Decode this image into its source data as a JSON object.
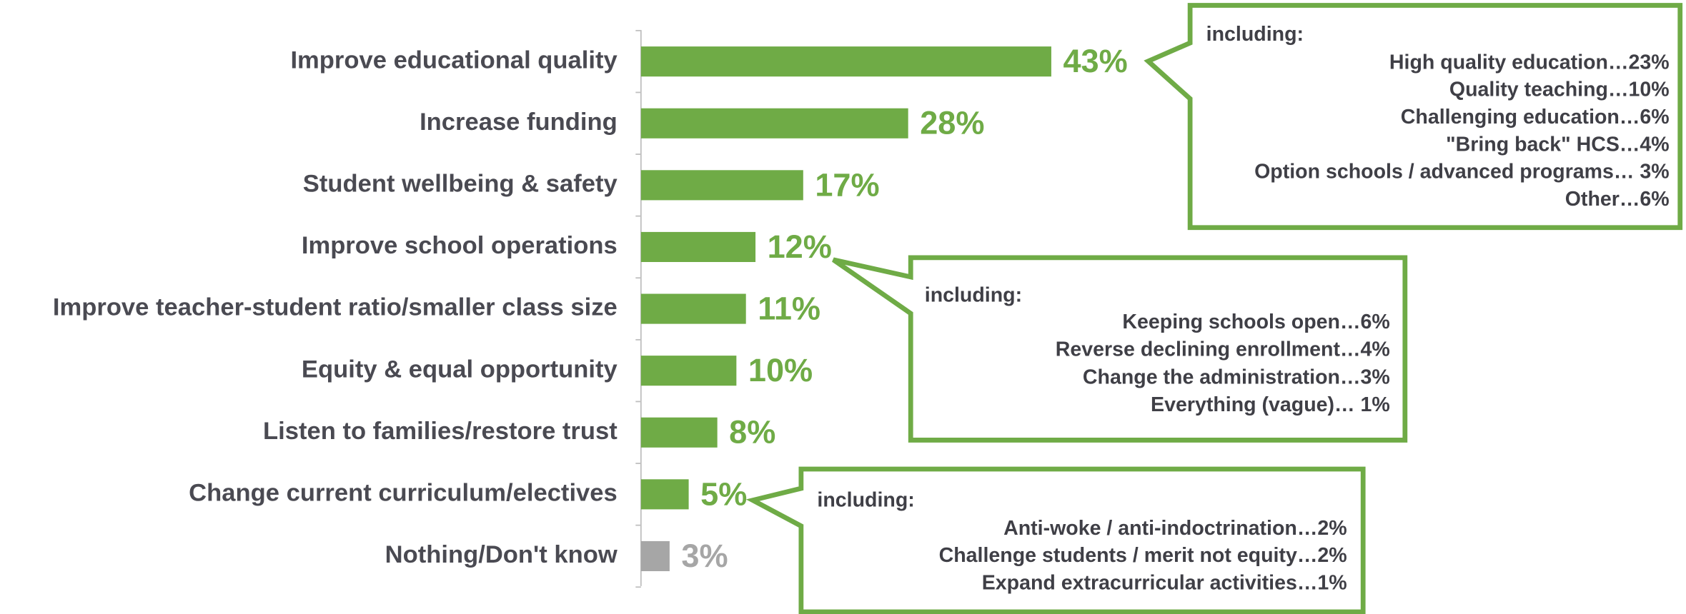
{
  "chart_data": {
    "type": "hbar",
    "categories": [
      "Improve educational quality",
      "Increase funding",
      "Student wellbeing & safety",
      "Improve school operations",
      "Improve teacher-student ratio/smaller class size",
      "Equity & equal opportunity",
      "Listen to families/restore trust",
      "Change current curriculum/electives",
      "Nothing/Don't know"
    ],
    "values": [
      43,
      28,
      17,
      12,
      11,
      10,
      8,
      5,
      3
    ],
    "value_labels": [
      "43%",
      "28%",
      "17%",
      "12%",
      "11%",
      "10%",
      "8%",
      "5%",
      "3%"
    ],
    "colors": [
      "#6fab46",
      "#6fab46",
      "#6fab46",
      "#6fab46",
      "#6fab46",
      "#6fab46",
      "#6fab46",
      "#6fab46",
      "#a6a6a6"
    ],
    "xlim": [
      0,
      100
    ],
    "annotations": [
      {
        "heading": "including:",
        "lines": [
          "High quality education…23%",
          "Quality teaching…10%",
          "Challenging education…6%",
          "\"Bring back\" HCS…4%",
          "Option schools / advanced programs… 3%",
          "Other…6%"
        ]
      },
      {
        "heading": "including:",
        "lines": [
          "Keeping schools open…6%",
          "Reverse declining enrollment…4%",
          "Change the administration…3%",
          "Everything (vague)… 1%"
        ]
      },
      {
        "heading": "including:",
        "lines": [
          "Anti-woke / anti-indoctrination…2%",
          "Challenge students / merit not equity…2%",
          "Expand extracurricular activities…1%"
        ]
      }
    ]
  }
}
